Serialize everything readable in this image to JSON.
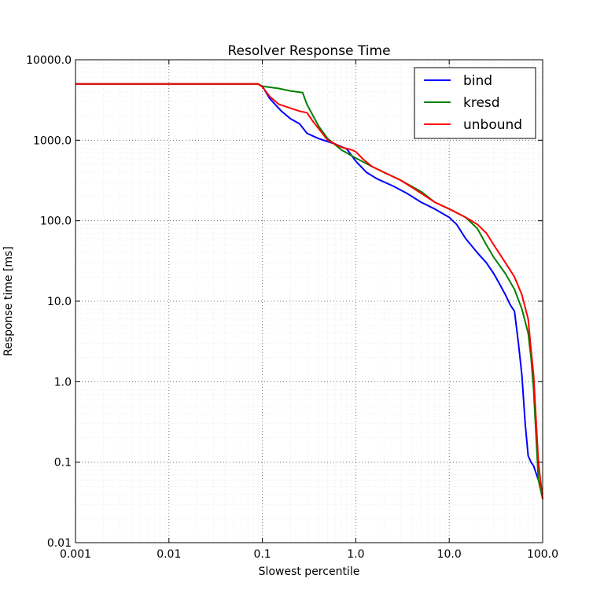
{
  "chart_data": {
    "type": "line",
    "title": "Resolver Response Time",
    "xlabel": "Slowest percentile",
    "ylabel": "Response time [ms]",
    "xscale": "log",
    "yscale": "log",
    "xlim": [
      0.001,
      100.0
    ],
    "ylim": [
      0.01,
      10000.0
    ],
    "x_tick_labels": [
      "0.001",
      "0.01",
      "0.1",
      "1.0",
      "10.0",
      "100.0"
    ],
    "y_tick_labels": [
      "0.01",
      "0.1",
      "1.0",
      "10.0",
      "100.0",
      "1000.0",
      "10000.0"
    ],
    "grid": true,
    "legend_position": "top-right",
    "series": [
      {
        "name": "bind",
        "color": "#0000ff",
        "x": [
          0.001,
          0.09,
          0.1,
          0.12,
          0.16,
          0.2,
          0.25,
          0.3,
          0.4,
          0.6,
          0.8,
          1.0,
          1.3,
          1.7,
          2.5,
          3.5,
          5,
          7,
          10,
          12,
          15,
          20,
          25,
          30,
          35,
          40,
          45,
          50,
          55,
          60,
          65,
          70,
          75,
          80,
          90,
          100
        ],
        "y": [
          5000,
          5000,
          4700,
          3300,
          2300,
          1850,
          1600,
          1220,
          1050,
          900,
          780,
          550,
          400,
          330,
          270,
          220,
          170,
          140,
          110,
          90,
          60,
          40,
          30,
          22,
          16,
          12,
          9,
          7.5,
          3,
          1.2,
          0.3,
          0.12,
          0.1,
          0.09,
          0.06,
          0.04
        ]
      },
      {
        "name": "kresd",
        "color": "#008000",
        "x": [
          0.001,
          0.09,
          0.1,
          0.15,
          0.2,
          0.27,
          0.3,
          0.35,
          0.4,
          0.5,
          0.7,
          1.0,
          1.5,
          2,
          3,
          5,
          7,
          10,
          15,
          20,
          25,
          30,
          40,
          50,
          60,
          70,
          75,
          80,
          90,
          100
        ],
        "y": [
          5000,
          5000,
          4700,
          4400,
          4100,
          3900,
          2800,
          2000,
          1500,
          1050,
          760,
          600,
          470,
          400,
          320,
          230,
          170,
          140,
          110,
          80,
          50,
          35,
          22,
          14,
          8,
          4,
          2,
          0.8,
          0.06,
          0.035
        ]
      },
      {
        "name": "unbound",
        "color": "#ff0000",
        "x": [
          0.001,
          0.09,
          0.1,
          0.12,
          0.15,
          0.2,
          0.25,
          0.3,
          0.35,
          0.4,
          0.5,
          0.7,
          0.9,
          1.0,
          1.2,
          1.5,
          2,
          3,
          5,
          7,
          10,
          15,
          20,
          25,
          30,
          40,
          50,
          60,
          70,
          75,
          80,
          90,
          100
        ],
        "y": [
          5000,
          5000,
          4600,
          3500,
          2800,
          2500,
          2300,
          2200,
          1700,
          1400,
          1000,
          820,
          760,
          720,
          580,
          470,
          400,
          320,
          220,
          170,
          140,
          110,
          90,
          70,
          50,
          30,
          20,
          12,
          6,
          2.5,
          1.2,
          0.1,
          0.035
        ]
      }
    ]
  }
}
